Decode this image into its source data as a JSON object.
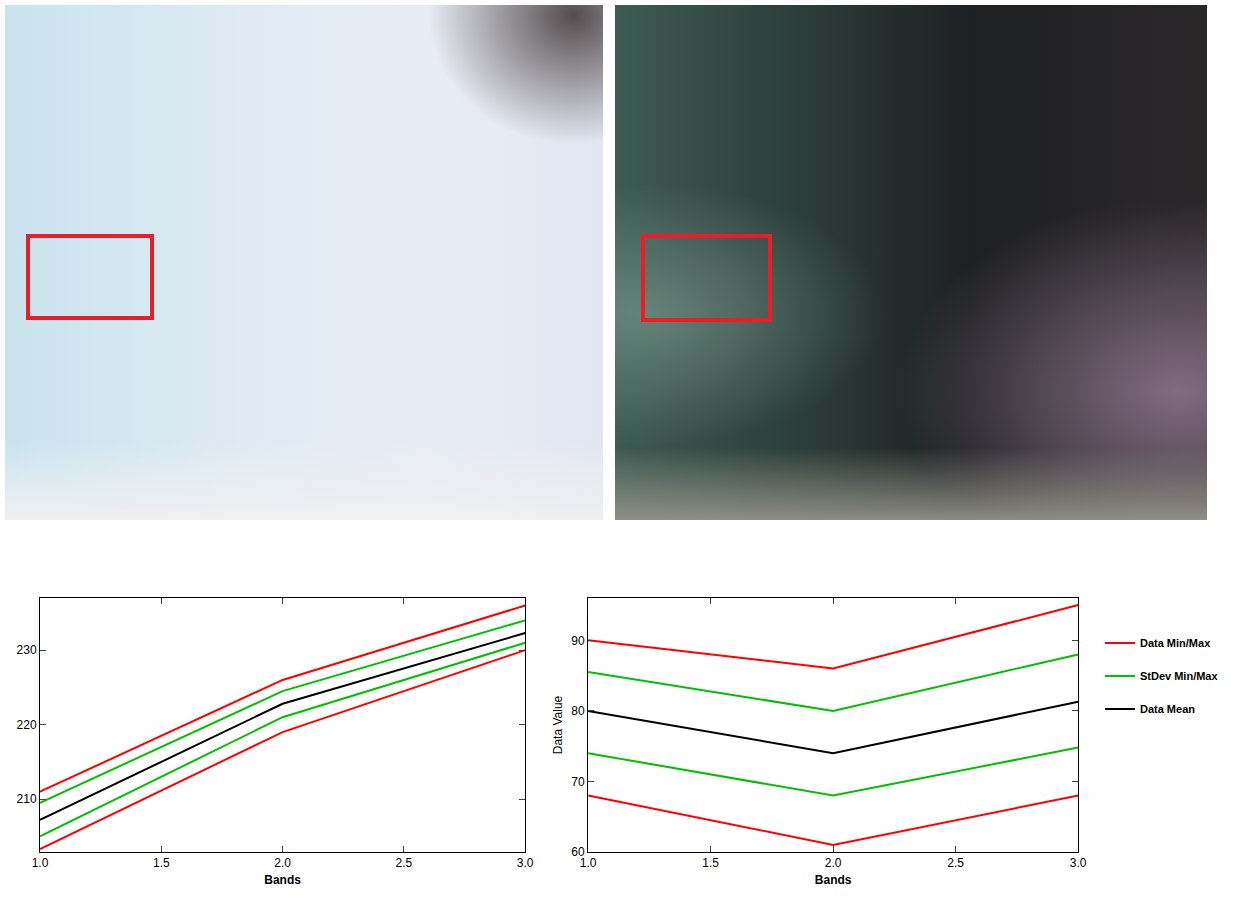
{
  "chart_data": [
    {
      "type": "line",
      "x": [
        1,
        2,
        3
      ],
      "xlim": [
        1,
        3
      ],
      "xticks": [
        {
          "value": 1,
          "label": "1.0"
        },
        {
          "value": 1.5,
          "label": "1.5"
        },
        {
          "value": 2,
          "label": "2.0"
        },
        {
          "value": 2.5,
          "label": "2.5"
        },
        {
          "value": 3,
          "label": "3.0"
        }
      ],
      "ylim": [
        202.9,
        237
      ],
      "yticks": [
        210,
        220,
        230
      ],
      "x_label": "Bands",
      "grid": false,
      "legend": "right",
      "series": [
        {
          "name": "Data Min/Max",
          "color": "#ff0000",
          "values": [
            203.3,
            219,
            230
          ]
        },
        {
          "name": "StDev Min/Max",
          "color": "#00c000",
          "values": [
            205,
            221,
            231
          ]
        },
        {
          "name": "Data Mean",
          "color": "#000000",
          "values": [
            207.2,
            222.8,
            232.3
          ]
        },
        {
          "name": "StDev Min/Max",
          "color": "#00c000",
          "values": [
            209.5,
            224.5,
            234
          ]
        },
        {
          "name": "Data Min/Max",
          "color": "#ff0000",
          "values": [
            211,
            226,
            236
          ]
        }
      ]
    },
    {
      "type": "line",
      "x": [
        1,
        2,
        3
      ],
      "xlim": [
        1,
        3
      ],
      "xticks": [
        {
          "value": 1,
          "label": "1.0"
        },
        {
          "value": 1.5,
          "label": "1.5"
        },
        {
          "value": 2,
          "label": "2.0"
        },
        {
          "value": 2.5,
          "label": "2.5"
        },
        {
          "value": 3,
          "label": "3.0"
        }
      ],
      "ylim": [
        60,
        96
      ],
      "yticks": [
        60,
        70,
        80,
        90
      ],
      "x_label": "Bands",
      "y_label": "Data Value",
      "grid": false,
      "legend": "right",
      "series": [
        {
          "name": "Data Min/Max",
          "color": "#ff0000",
          "values": [
            68,
            61,
            68
          ]
        },
        {
          "name": "StDev Min/Max",
          "color": "#00c000",
          "values": [
            74,
            68,
            74.8
          ]
        },
        {
          "name": "Data Mean",
          "color": "#000000",
          "values": [
            80,
            74,
            81.3
          ]
        },
        {
          "name": "StDev Min/Max",
          "color": "#00c000",
          "values": [
            85.5,
            80,
            88
          ]
        },
        {
          "name": "Data Min/Max",
          "color": "#ff0000",
          "values": [
            90,
            86,
            95
          ]
        }
      ]
    }
  ]
}
